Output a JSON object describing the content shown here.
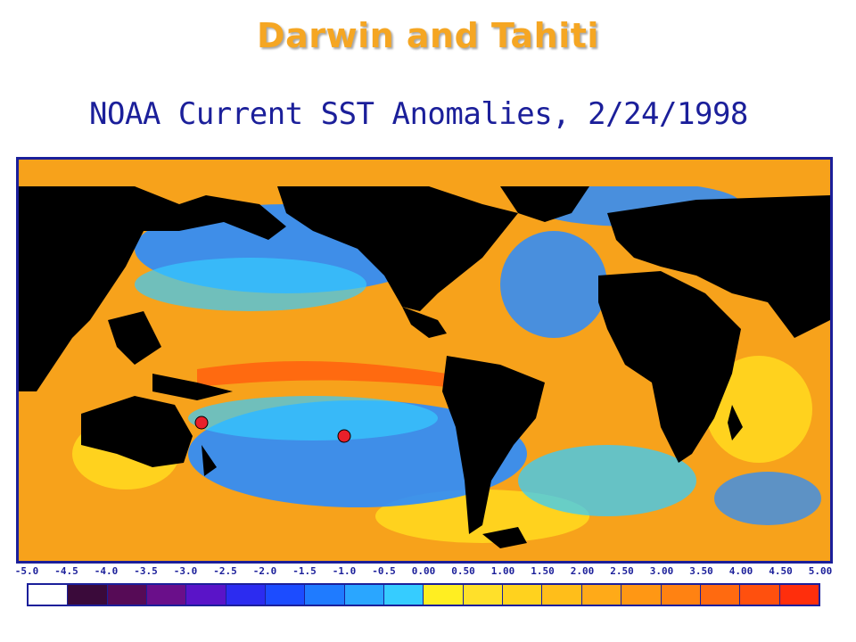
{
  "slide": {
    "title": "Darwin and Tahiti"
  },
  "map": {
    "title": "NOAA Current SST Anomalies, 2/24/1998",
    "markers": [
      {
        "name": "Darwin",
        "color": "#e8202a"
      },
      {
        "name": "Tahiti",
        "color": "#e8202a"
      }
    ]
  },
  "legend": {
    "ticks": [
      "-5.0",
      "-4.5",
      "-4.0",
      "-3.5",
      "-3.0",
      "-2.5",
      "-2.0",
      "-1.5",
      "-1.0",
      "-0.5",
      "0.00",
      "0.50",
      "1.00",
      "1.50",
      "2.00",
      "2.50",
      "3.00",
      "3.50",
      "4.00",
      "4.50",
      "5.00"
    ],
    "colors": [
      "#ffffff",
      "#3a0a3a",
      "#560b56",
      "#6a0f8a",
      "#5a14c8",
      "#2c2cf0",
      "#1c4cff",
      "#1f7bff",
      "#2aa6ff",
      "#36ccff",
      "#ffee22",
      "#ffe02a",
      "#ffd21e",
      "#ffbe1a",
      "#ffaa18",
      "#ff9714",
      "#ff8212",
      "#ff6a10",
      "#ff500e",
      "#ff2e0c"
    ]
  },
  "colors": {
    "title": "#f5a623",
    "frame": "#1b1f9a",
    "land": "#000000",
    "ocean_warm": "#f7a21b",
    "ocean_cool": "#2a8cff"
  }
}
